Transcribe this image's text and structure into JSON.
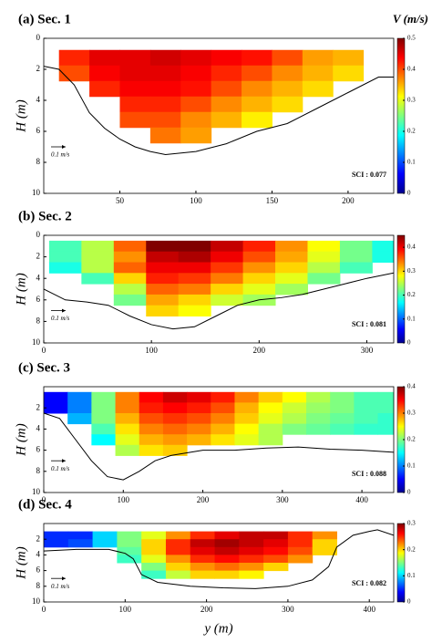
{
  "chart_data": [
    {
      "type": "heatmap",
      "title": "(a) Sec. 1",
      "ylabel": "H (m)",
      "colorbar_label": "V (m/s)",
      "annotation": "SCI : 0.077",
      "scale_label": "0.1 m/s",
      "xlim": [
        0,
        230
      ],
      "xticks": [
        50,
        100,
        150,
        200
      ],
      "ylim": [
        0,
        10
      ],
      "yticks": [
        0,
        2,
        4,
        6,
        8,
        10
      ],
      "clim": [
        0,
        0.5
      ],
      "cticks": [
        0,
        0.1,
        0.2,
        0.3,
        0.4,
        0.5
      ],
      "x": [
        20,
        40,
        60,
        80,
        100,
        120,
        140,
        160,
        180,
        200
      ],
      "y": [
        1.25,
        2.25,
        3.25,
        4.25,
        5.25,
        6.25
      ],
      "values": [
        [
          0.42,
          0.45,
          0.45,
          0.46,
          0.45,
          0.44,
          0.43,
          0.4,
          0.36,
          0.35
        ],
        [
          0.4,
          0.44,
          0.45,
          0.45,
          0.44,
          0.42,
          0.4,
          0.37,
          0.35,
          0.33
        ],
        [
          null,
          0.42,
          0.44,
          0.44,
          0.43,
          0.4,
          0.37,
          0.35,
          0.33,
          null
        ],
        [
          null,
          null,
          0.42,
          0.42,
          0.4,
          0.37,
          0.35,
          0.33,
          null,
          null
        ],
        [
          null,
          null,
          0.4,
          0.4,
          0.37,
          0.35,
          0.32,
          null,
          null,
          null
        ],
        [
          null,
          null,
          null,
          0.38,
          0.36,
          null,
          null,
          null,
          null,
          null
        ]
      ],
      "bed": {
        "x": [
          0,
          10,
          20,
          30,
          40,
          50,
          60,
          70,
          80,
          100,
          120,
          140,
          160,
          180,
          200,
          220,
          230
        ],
        "y": [
          1.8,
          2,
          3,
          4.8,
          5.8,
          6.5,
          7,
          7.3,
          7.5,
          7.3,
          6.8,
          6,
          5.5,
          4.5,
          3.5,
          2.5,
          2.5
        ]
      }
    },
    {
      "type": "heatmap",
      "title": "(b) Sec. 2",
      "ylabel": "H (m)",
      "annotation": "SCI : 0.081",
      "scale_label": "0.1 m/s",
      "xlim": [
        0,
        325
      ],
      "xticks": [
        0,
        100,
        200,
        300
      ],
      "ylim": [
        0,
        10
      ],
      "yticks": [
        0,
        2,
        4,
        6,
        8,
        10
      ],
      "clim": [
        0,
        0.45
      ],
      "cticks": [
        0,
        0.1,
        0.2,
        0.3,
        0.4
      ],
      "x": [
        20,
        50,
        80,
        110,
        140,
        170,
        200,
        230,
        260,
        290,
        320
      ],
      "y": [
        1,
        2,
        3,
        4,
        5,
        6,
        7
      ],
      "values": [
        [
          0.2,
          0.25,
          0.35,
          0.45,
          0.45,
          0.42,
          0.38,
          0.33,
          0.28,
          0.22,
          0.18
        ],
        [
          0.2,
          0.25,
          0.33,
          0.42,
          0.43,
          0.4,
          0.36,
          0.32,
          0.27,
          0.22,
          0.18
        ],
        [
          0.18,
          0.25,
          0.35,
          0.4,
          0.4,
          0.37,
          0.33,
          0.3,
          0.25,
          0.2,
          null
        ],
        [
          null,
          0.2,
          0.3,
          0.38,
          0.37,
          0.34,
          0.3,
          0.27,
          0.22,
          null,
          null
        ],
        [
          null,
          null,
          0.25,
          0.35,
          0.34,
          0.3,
          0.27,
          0.24,
          null,
          null,
          null
        ],
        [
          null,
          null,
          0.22,
          0.32,
          0.3,
          0.26,
          0.24,
          null,
          null,
          null,
          null
        ],
        [
          null,
          null,
          null,
          0.3,
          0.28,
          null,
          null,
          null,
          null,
          null,
          null
        ]
      ],
      "bed": {
        "x": [
          0,
          20,
          40,
          60,
          80,
          100,
          120,
          140,
          160,
          180,
          200,
          220,
          240,
          260,
          280,
          300,
          325
        ],
        "y": [
          5,
          6,
          6.2,
          6.5,
          7.5,
          8.3,
          8.7,
          8.5,
          7.5,
          6.5,
          6,
          5.8,
          5.5,
          5,
          4.5,
          4,
          3.5
        ]
      }
    },
    {
      "type": "heatmap",
      "title": "(c) Sec. 3",
      "ylabel": "H (m)",
      "annotation": "SCI : 0.088",
      "scale_label": "0.1 m/s",
      "xlim": [
        0,
        440
      ],
      "xticks": [
        0,
        100,
        200,
        300,
        400
      ],
      "ylim": [
        0,
        10
      ],
      "yticks": [
        2,
        4,
        6,
        8,
        10
      ],
      "clim": [
        0,
        0.4
      ],
      "cticks": [
        0,
        0.1,
        0.2,
        0.3,
        0.4
      ],
      "x": [
        15,
        45,
        75,
        105,
        135,
        165,
        195,
        225,
        255,
        285,
        315,
        345,
        375,
        405,
        435
      ],
      "y": [
        1,
        2,
        3,
        4,
        5,
        6
      ],
      "values": [
        [
          0.05,
          0.1,
          0.2,
          0.3,
          0.35,
          0.37,
          0.36,
          0.34,
          0.3,
          0.27,
          0.25,
          0.22,
          0.2,
          0.18,
          0.18
        ],
        [
          0.05,
          0.1,
          0.2,
          0.3,
          0.34,
          0.35,
          0.34,
          0.32,
          0.28,
          0.25,
          0.23,
          0.21,
          0.2,
          0.18,
          0.18
        ],
        [
          null,
          0.12,
          0.2,
          0.28,
          0.32,
          0.33,
          0.32,
          0.3,
          0.27,
          0.24,
          0.22,
          0.2,
          0.19,
          0.18,
          0.17
        ],
        [
          null,
          null,
          0.18,
          0.26,
          0.3,
          0.31,
          0.3,
          0.28,
          0.25,
          0.22,
          0.2,
          0.19,
          0.18,
          0.17,
          0.17
        ],
        [
          null,
          null,
          0.15,
          0.24,
          0.28,
          0.29,
          0.28,
          0.26,
          0.24,
          0.22,
          null,
          null,
          null,
          null,
          null
        ],
        [
          null,
          null,
          null,
          0.22,
          0.26,
          0.27,
          null,
          null,
          null,
          null,
          null,
          null,
          null,
          null,
          null
        ]
      ],
      "bed": {
        "x": [
          0,
          20,
          40,
          60,
          80,
          100,
          120,
          140,
          160,
          200,
          240,
          280,
          320,
          360,
          400,
          440
        ],
        "y": [
          2.5,
          3,
          5,
          7,
          8.5,
          8.8,
          8,
          7,
          6.5,
          6,
          6,
          5.8,
          5.7,
          5.9,
          6,
          6.2
        ]
      }
    },
    {
      "type": "heatmap",
      "title": "(d) Sec. 4",
      "ylabel": "H (m)",
      "xlabel": "y (m)",
      "annotation": "SCI : 0.082",
      "scale_label": "0.1 m/s",
      "xlim": [
        0,
        430
      ],
      "xticks": [
        0,
        100,
        200,
        300,
        400
      ],
      "ylim": [
        0,
        10
      ],
      "yticks": [
        2,
        4,
        6,
        8,
        10
      ],
      "clim": [
        0,
        0.3
      ],
      "cticks": [
        0,
        0.1,
        0.2,
        0.3
      ],
      "x": [
        15,
        45,
        75,
        105,
        135,
        165,
        195,
        225,
        255,
        285,
        315,
        345
      ],
      "y": [
        1.5,
        2.5,
        3.5,
        4.5,
        5.5,
        6.5
      ],
      "values": [
        [
          0.05,
          0.05,
          0.1,
          0.15,
          0.18,
          0.22,
          0.25,
          0.27,
          0.28,
          0.28,
          0.25,
          0.22
        ],
        [
          0.05,
          0.06,
          0.1,
          0.15,
          0.2,
          0.25,
          0.28,
          0.29,
          0.28,
          0.27,
          0.25,
          0.2
        ],
        [
          null,
          null,
          null,
          0.14,
          0.2,
          0.25,
          0.27,
          0.28,
          0.27,
          0.26,
          0.24,
          0.2
        ],
        [
          null,
          null,
          null,
          0.13,
          0.18,
          0.22,
          0.25,
          0.26,
          0.25,
          0.24,
          0.22,
          null
        ],
        [
          null,
          null,
          null,
          null,
          0.15,
          0.2,
          0.22,
          0.23,
          0.22,
          0.2,
          null,
          null
        ],
        [
          null,
          null,
          null,
          null,
          0.13,
          0.17,
          0.2,
          0.2,
          0.19,
          null,
          null,
          null
        ]
      ],
      "bed": {
        "x": [
          0,
          40,
          80,
          100,
          110,
          120,
          140,
          180,
          220,
          260,
          300,
          330,
          350,
          360,
          380,
          400,
          410,
          430
        ],
        "y": [
          3.5,
          3.3,
          3.3,
          3.8,
          4.5,
          6.5,
          7.5,
          8,
          8.2,
          8.3,
          8,
          7.2,
          5.5,
          3,
          1.5,
          1,
          0.8,
          1.5
        ]
      }
    }
  ]
}
